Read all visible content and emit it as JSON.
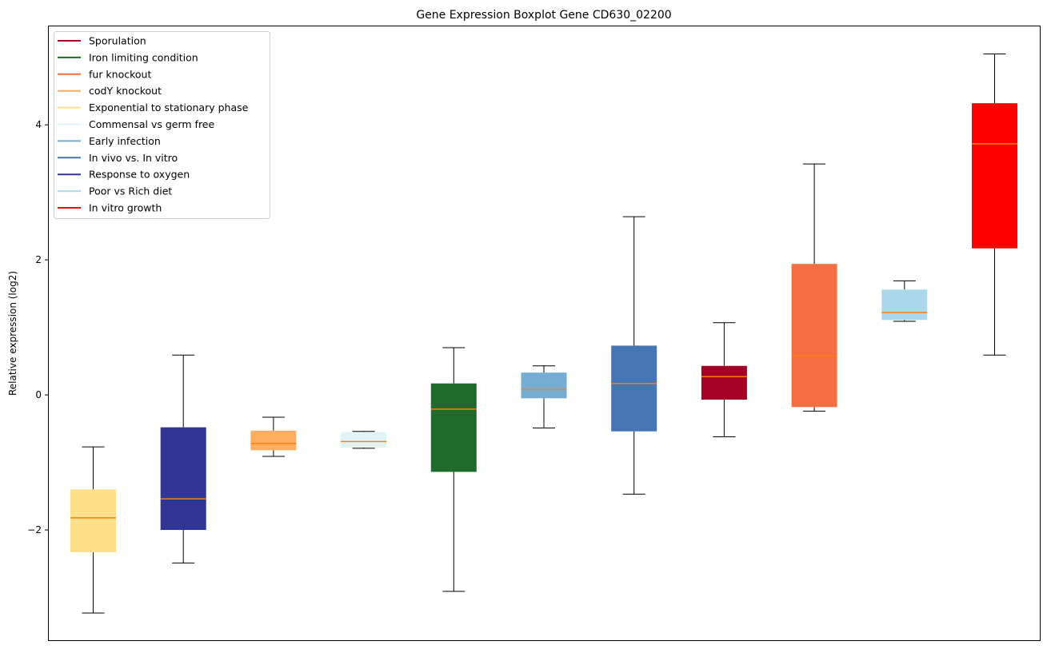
{
  "chart_data": {
    "type": "box",
    "title": "Gene Expression Boxplot Gene CD630_02200",
    "xlabel": "",
    "ylabel": "Relative expression (log2)",
    "ylim": [
      -3.645,
      5.47
    ],
    "yticks": [
      -2,
      0,
      2,
      4
    ],
    "ytick_labels": [
      "−2",
      "0",
      "2",
      "4"
    ],
    "grid": false,
    "legend_position": "top-left",
    "median_color": "#ff7f0e",
    "legend": [
      {
        "label": "Sporulation",
        "color": "#a50026"
      },
      {
        "label": "Iron limiting condition",
        "color": "#1f6a2d"
      },
      {
        "label": "fur knockout",
        "color": "#f46d43"
      },
      {
        "label": "codY knockout",
        "color": "#fdae61"
      },
      {
        "label": "Exponential to stationary phase",
        "color": "#fee08b"
      },
      {
        "label": "Commensal vs germ free",
        "color": "#e0f3f8"
      },
      {
        "label": "Early infection",
        "color": "#74add1"
      },
      {
        "label": "In vivo vs. In vitro",
        "color": "#4575b4"
      },
      {
        "label": "Response to oxygen",
        "color": "#313695"
      },
      {
        "label": "Poor vs Rich diet",
        "color": "#abd9e9"
      },
      {
        "label": "In vitro growth",
        "color": "#ff0000"
      }
    ],
    "boxes": [
      {
        "group": "Exponential to stationary phase",
        "color": "#fee08b",
        "whislo": -3.23,
        "q1": -2.33,
        "med": -1.82,
        "q3": -1.4,
        "whishi": -0.77
      },
      {
        "group": "Response to oxygen",
        "color": "#313695",
        "whislo": -2.49,
        "q1": -2.0,
        "med": -1.54,
        "q3": -0.48,
        "whishi": 0.59
      },
      {
        "group": "codY knockout",
        "color": "#fdae61",
        "whislo": -0.91,
        "q1": -0.82,
        "med": -0.72,
        "q3": -0.53,
        "whishi": -0.33
      },
      {
        "group": "Commensal vs germ free",
        "color": "#e0f3f8",
        "whislo": -0.79,
        "q1": -0.78,
        "med": -0.69,
        "q3": -0.55,
        "whishi": -0.54
      },
      {
        "group": "Iron limiting condition",
        "color": "#1f6a2d",
        "whislo": -2.91,
        "q1": -1.14,
        "med": -0.21,
        "q3": 0.17,
        "whishi": 0.7
      },
      {
        "group": "Early infection",
        "color": "#74add1",
        "whislo": -0.49,
        "q1": -0.05,
        "med": 0.08,
        "q3": 0.33,
        "whishi": 0.43
      },
      {
        "group": "In vivo vs. In vitro",
        "color": "#4575b4",
        "whislo": -1.47,
        "q1": -0.54,
        "med": 0.17,
        "q3": 0.73,
        "whishi": 2.64
      },
      {
        "group": "Sporulation",
        "color": "#a50026",
        "whislo": -0.62,
        "q1": -0.07,
        "med": 0.27,
        "q3": 0.43,
        "whishi": 1.07
      },
      {
        "group": "fur knockout",
        "color": "#f46d43",
        "whislo": -0.24,
        "q1": -0.18,
        "med": 0.58,
        "q3": 1.94,
        "whishi": 3.42
      },
      {
        "group": "Poor vs Rich diet",
        "color": "#abd9e9",
        "whislo": 1.09,
        "q1": 1.11,
        "med": 1.22,
        "q3": 1.56,
        "whishi": 1.69
      },
      {
        "group": "In vitro growth",
        "color": "#ff0000",
        "whislo": 0.59,
        "q1": 2.17,
        "med": 3.72,
        "q3": 4.32,
        "whishi": 5.05
      }
    ]
  }
}
